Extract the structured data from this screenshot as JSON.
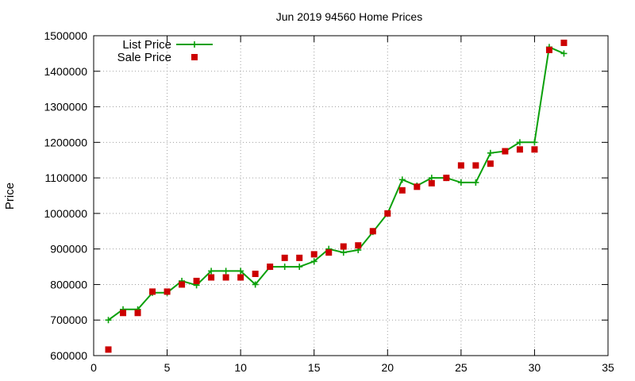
{
  "chart_data": {
    "type": "line",
    "title": "Jun 2019 94560 Home Prices",
    "xlabel": "",
    "ylabel": "Price",
    "xlim": [
      0,
      35
    ],
    "ylim": [
      600000,
      1500000
    ],
    "xticks": [
      0,
      5,
      10,
      15,
      20,
      25,
      30,
      35
    ],
    "yticks": [
      600000,
      700000,
      800000,
      900000,
      1000000,
      1100000,
      1200000,
      1300000,
      1400000,
      1500000
    ],
    "grid": true,
    "legend_position": "top-left",
    "series": [
      {
        "name": "List Price",
        "style": "line-plus",
        "color": "#0aa00a",
        "x": [
          1,
          2,
          3,
          4,
          5,
          6,
          7,
          8,
          9,
          10,
          11,
          12,
          13,
          14,
          15,
          16,
          17,
          18,
          19,
          20,
          21,
          22,
          23,
          24,
          25,
          26,
          27,
          28,
          29,
          30,
          31,
          32
        ],
        "y": [
          700000,
          730000,
          730000,
          777000,
          777000,
          810000,
          798000,
          838000,
          838000,
          838000,
          800000,
          850000,
          850000,
          850000,
          865000,
          900000,
          890000,
          897000,
          948000,
          1000000,
          1095000,
          1078000,
          1100000,
          1100000,
          1087000,
          1087000,
          1170000,
          1175000,
          1200000,
          1200000,
          1468000,
          1450000
        ]
      },
      {
        "name": "Sale Price",
        "style": "square",
        "color": "#cc0000",
        "x": [
          1,
          2,
          3,
          4,
          5,
          6,
          7,
          8,
          9,
          10,
          11,
          12,
          13,
          14,
          15,
          16,
          17,
          18,
          19,
          20,
          21,
          22,
          23,
          24,
          25,
          26,
          27,
          28,
          29,
          30,
          31,
          32
        ],
        "y": [
          617000,
          720000,
          720000,
          780000,
          780000,
          800000,
          810000,
          820000,
          820000,
          820000,
          830000,
          850000,
          875000,
          875000,
          885000,
          890000,
          907000,
          910000,
          950000,
          1000000,
          1065000,
          1075000,
          1085000,
          1100000,
          1135000,
          1135000,
          1140000,
          1175000,
          1180000,
          1180000,
          1460000,
          1480000
        ]
      }
    ]
  }
}
